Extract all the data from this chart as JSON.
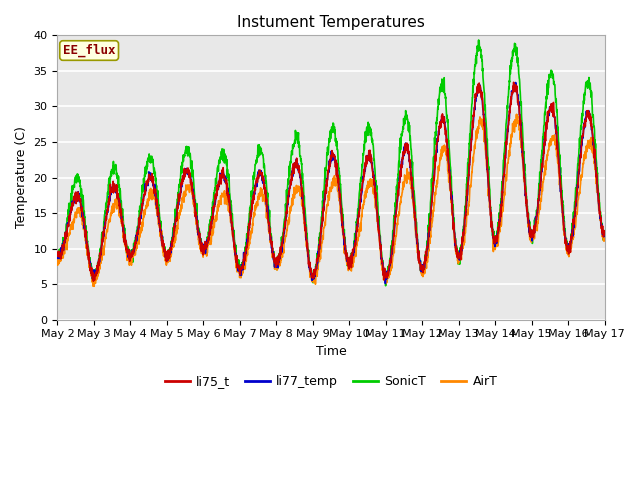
{
  "title": "Instument Temperatures",
  "xlabel": "Time",
  "ylabel": "Temperature (C)",
  "ylim": [
    0,
    40
  ],
  "xlim": [
    0,
    15
  ],
  "x_tick_labels": [
    "May 2",
    "May 3",
    "May 4",
    "May 5",
    "May 6",
    "May 7",
    "May 8",
    "May 9",
    "May 10",
    "May 11",
    "May 12",
    "May 13",
    "May 14",
    "May 15",
    "May 16",
    "May 17"
  ],
  "background_color": "#ffffff",
  "plot_bg_color": "#e8e8e8",
  "annotation_text": "EE_flux",
  "annotation_color": "#8b0000",
  "annotation_bg": "#ffffe0",
  "lines": {
    "li75_t": {
      "color": "#cc0000",
      "linewidth": 1.2
    },
    "li77_temp": {
      "color": "#0000cc",
      "linewidth": 1.2
    },
    "SonicT": {
      "color": "#00cc00",
      "linewidth": 1.2
    },
    "AirT": {
      "color": "#ff8800",
      "linewidth": 1.2
    }
  }
}
